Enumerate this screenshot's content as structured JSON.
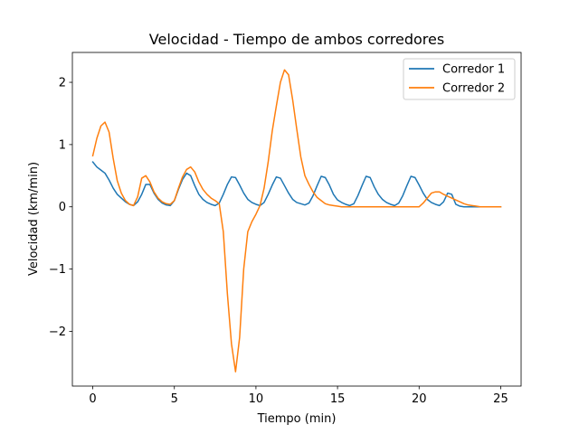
{
  "chart_data": {
    "type": "line",
    "title": "Velocidad - Tiempo de ambos corredores",
    "xlabel": "Tiempo (min)",
    "ylabel": "Velocidad (km/min)",
    "xlim": [
      -1.25,
      26.25
    ],
    "ylim": [
      -2.88,
      2.48
    ],
    "xticks": [
      0,
      5,
      10,
      15,
      20,
      25
    ],
    "xtick_labels": [
      "0",
      "5",
      "10",
      "15",
      "20",
      "25"
    ],
    "yticks": [
      -2,
      -1,
      0,
      1,
      2
    ],
    "ytick_labels": [
      "−2",
      "−1",
      "0",
      "1",
      "2"
    ],
    "grid": false,
    "legend_position": "top-right",
    "series": [
      {
        "name": "Corredor 1",
        "color": "#1f77b4",
        "x": [
          0,
          0.25,
          0.5,
          0.75,
          1.0,
          1.25,
          1.5,
          1.75,
          2.0,
          2.25,
          2.5,
          2.75,
          3.0,
          3.25,
          3.5,
          3.75,
          4.0,
          4.25,
          4.5,
          4.75,
          5.0,
          5.25,
          5.5,
          5.75,
          6.0,
          6.25,
          6.5,
          6.75,
          7.0,
          7.25,
          7.5,
          7.75,
          8.0,
          8.25,
          8.5,
          8.75,
          9.0,
          9.25,
          9.5,
          9.75,
          10.0,
          10.25,
          10.5,
          10.75,
          11.0,
          11.25,
          11.5,
          11.75,
          12.0,
          12.25,
          12.5,
          12.75,
          13.0,
          13.25,
          13.5,
          13.75,
          14.0,
          14.25,
          14.5,
          14.75,
          15.0,
          15.25,
          15.5,
          15.75,
          16.0,
          16.25,
          16.5,
          16.75,
          17.0,
          17.25,
          17.5,
          17.75,
          18.0,
          18.25,
          18.5,
          18.75,
          19.0,
          19.25,
          19.5,
          19.75,
          20.0,
          20.25,
          20.5,
          20.75,
          21.0,
          21.25,
          21.5,
          21.75,
          22.0,
          22.25,
          22.5,
          22.75,
          23.0,
          23.25,
          23.5,
          23.75,
          24.0,
          24.25,
          24.5,
          24.75,
          25.0
        ],
        "y": [
          0.72,
          0.64,
          0.59,
          0.54,
          0.43,
          0.3,
          0.2,
          0.14,
          0.08,
          0.04,
          0.02,
          0.08,
          0.2,
          0.36,
          0.36,
          0.22,
          0.12,
          0.06,
          0.03,
          0.02,
          0.1,
          0.28,
          0.44,
          0.54,
          0.5,
          0.34,
          0.2,
          0.12,
          0.07,
          0.04,
          0.02,
          0.06,
          0.2,
          0.36,
          0.48,
          0.47,
          0.35,
          0.22,
          0.12,
          0.07,
          0.04,
          0.02,
          0.07,
          0.2,
          0.35,
          0.48,
          0.46,
          0.34,
          0.22,
          0.12,
          0.07,
          0.05,
          0.03,
          0.06,
          0.18,
          0.34,
          0.49,
          0.47,
          0.35,
          0.2,
          0.11,
          0.07,
          0.04,
          0.02,
          0.05,
          0.18,
          0.34,
          0.49,
          0.47,
          0.32,
          0.2,
          0.12,
          0.07,
          0.04,
          0.02,
          0.06,
          0.18,
          0.34,
          0.49,
          0.47,
          0.35,
          0.22,
          0.12,
          0.07,
          0.04,
          0.02,
          0.08,
          0.22,
          0.2,
          0.04,
          0.01,
          0.0,
          0.0,
          0.0,
          0.0,
          0.0,
          0.0,
          0.0,
          0.0,
          0.0,
          0.0
        ]
      },
      {
        "name": "Corredor 2",
        "color": "#ff7f0e",
        "x": [
          0,
          0.25,
          0.5,
          0.75,
          1.0,
          1.25,
          1.5,
          1.75,
          2.0,
          2.25,
          2.5,
          2.75,
          3.0,
          3.25,
          3.5,
          3.75,
          4.0,
          4.25,
          4.5,
          4.75,
          5.0,
          5.25,
          5.5,
          5.75,
          6.0,
          6.25,
          6.5,
          6.75,
          7.0,
          7.25,
          7.5,
          7.75,
          8.0,
          8.25,
          8.5,
          8.75,
          9.0,
          9.25,
          9.5,
          9.75,
          10.0,
          10.25,
          10.5,
          10.75,
          11.0,
          11.25,
          11.5,
          11.75,
          12.0,
          12.25,
          12.5,
          12.75,
          13.0,
          13.25,
          13.5,
          13.75,
          14.0,
          14.25,
          14.5,
          14.75,
          15.0,
          15.25,
          15.5,
          15.75,
          16.0,
          16.5,
          17.0,
          17.5,
          18.0,
          18.5,
          19.0,
          19.5,
          20.0,
          20.25,
          20.5,
          20.75,
          21.0,
          21.25,
          21.5,
          21.75,
          22.0,
          22.25,
          22.5,
          22.75,
          23.0,
          23.25,
          23.5,
          23.75,
          24.0,
          24.5,
          25.0
        ],
        "y": [
          0.82,
          1.1,
          1.3,
          1.36,
          1.2,
          0.78,
          0.42,
          0.22,
          0.1,
          0.04,
          0.02,
          0.16,
          0.46,
          0.5,
          0.4,
          0.24,
          0.14,
          0.08,
          0.05,
          0.04,
          0.1,
          0.3,
          0.48,
          0.6,
          0.64,
          0.56,
          0.4,
          0.28,
          0.2,
          0.14,
          0.1,
          0.05,
          -0.4,
          -1.4,
          -2.2,
          -2.65,
          -2.1,
          -1.0,
          -0.4,
          -0.24,
          -0.12,
          0.02,
          0.3,
          0.72,
          1.22,
          1.62,
          2.0,
          2.2,
          2.12,
          1.72,
          1.25,
          0.8,
          0.5,
          0.36,
          0.24,
          0.15,
          0.1,
          0.05,
          0.03,
          0.02,
          0.01,
          0.0,
          0.0,
          0.0,
          0.0,
          0.0,
          0.0,
          0.0,
          0.0,
          0.0,
          0.0,
          0.0,
          0.0,
          0.06,
          0.14,
          0.22,
          0.24,
          0.24,
          0.2,
          0.17,
          0.14,
          0.11,
          0.08,
          0.05,
          0.03,
          0.02,
          0.01,
          0.0,
          0.0,
          0.0,
          0.0
        ]
      }
    ]
  }
}
